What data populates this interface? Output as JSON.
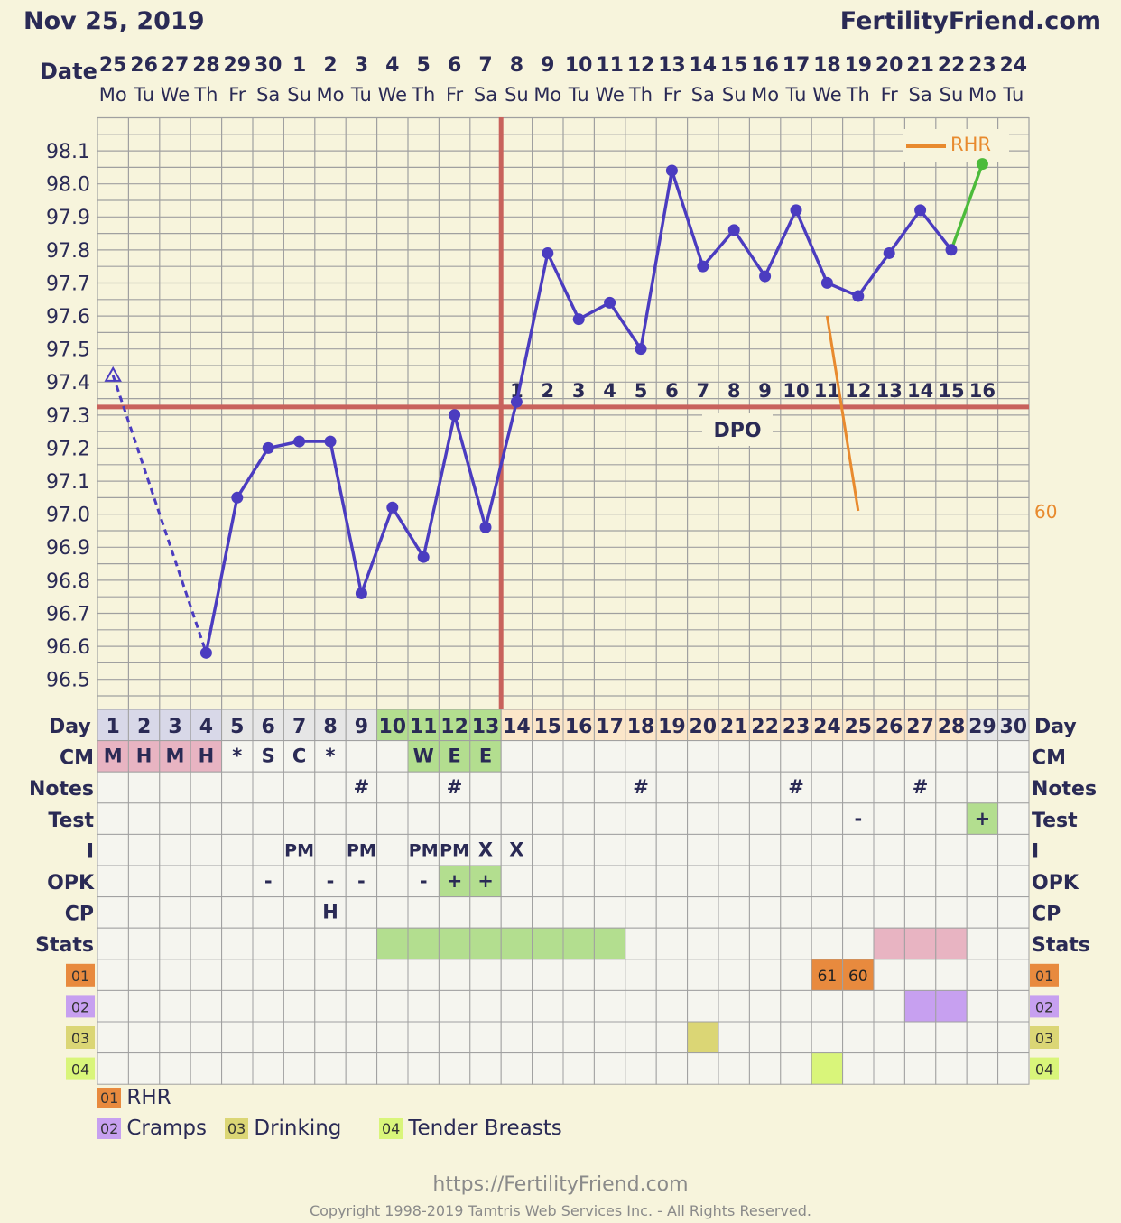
{
  "header": {
    "date": "Nov 25, 2019",
    "site": "FertilityFriend.com"
  },
  "footer": {
    "url": "https://FertilityFriend.com",
    "copyright": "Copyright 1998-2019 Tamtris Web Services Inc. - All Rights Reserved."
  },
  "labels": {
    "date": "Date",
    "day": "Day",
    "dpo": "DPO",
    "rhr_axis": "60"
  },
  "colors": {
    "background": "#f7f4dc",
    "temp_line": "#4b3cc0",
    "coverline": "#c8625c",
    "rhr": "#e88a2e",
    "today": "#4cbb3a",
    "menses": "#e8b4c2",
    "fertile": "#b3de8f",
    "post_ovulation": "#fbe6c9",
    "cat01": "#e88a3e",
    "cat02": "#c7a0f0",
    "cat03": "#dbd675",
    "cat04": "#d9f57a"
  },
  "chart_data": {
    "type": "line",
    "title": "Nov 25, 2019",
    "dates": [
      "25",
      "26",
      "27",
      "28",
      "29",
      "30",
      "1",
      "2",
      "3",
      "4",
      "5",
      "6",
      "7",
      "8",
      "9",
      "10",
      "11",
      "12",
      "13",
      "14",
      "15",
      "16",
      "17",
      "18",
      "19",
      "20",
      "21",
      "22",
      "23",
      "24"
    ],
    "weekdays": [
      "Mo",
      "Tu",
      "We",
      "Th",
      "Fr",
      "Sa",
      "Su",
      "Mo",
      "Tu",
      "We",
      "Th",
      "Fr",
      "Sa",
      "Su",
      "Mo",
      "Tu",
      "We",
      "Th",
      "Fr",
      "Sa",
      "Su",
      "Mo",
      "Tu",
      "We",
      "Th",
      "Fr",
      "Sa",
      "Su",
      "Mo",
      "Tu"
    ],
    "cycle_days": [
      1,
      2,
      3,
      4,
      5,
      6,
      7,
      8,
      9,
      10,
      11,
      12,
      13,
      14,
      15,
      16,
      17,
      18,
      19,
      20,
      21,
      22,
      23,
      24,
      25,
      26,
      27,
      28,
      29,
      30
    ],
    "y_ticks": [
      "98.1",
      "98.0",
      "97.9",
      "97.8",
      "97.7",
      "97.6",
      "97.5",
      "97.4",
      "97.3",
      "97.2",
      "97.1",
      "97.0",
      "96.9",
      "96.8",
      "96.7",
      "96.6",
      "96.5"
    ],
    "ylim": [
      96.4,
      98.2
    ],
    "temperatures": [
      97.42,
      null,
      null,
      96.58,
      97.05,
      97.2,
      97.22,
      97.22,
      96.76,
      97.02,
      96.87,
      97.3,
      96.96,
      97.34,
      97.79,
      97.59,
      97.64,
      97.5,
      98.04,
      97.75,
      97.86,
      97.72,
      97.92,
      97.7,
      97.66,
      97.79,
      97.92,
      97.8,
      98.06,
      null
    ],
    "open_marker_days": [
      1
    ],
    "dashed_segment_days": [
      1,
      4
    ],
    "today_segment_days": [
      28,
      29
    ],
    "coverline": 97.33,
    "ovulation_day": 13,
    "dpo_labels": [
      "1",
      "2",
      "3",
      "4",
      "5",
      "6",
      "7",
      "8",
      "9",
      "10",
      "11",
      "12",
      "13",
      "14",
      "15",
      "16"
    ],
    "dpo_start_day": 14,
    "rhr": {
      "name": "RHR",
      "days": [
        24,
        25
      ],
      "values": [
        61,
        60
      ]
    },
    "menses_days": [
      1,
      2,
      3,
      4
    ],
    "fertile_days": [
      10,
      11,
      12,
      13
    ],
    "post_ov_days": [
      14,
      15,
      16,
      17,
      18,
      19,
      20,
      21,
      22,
      23,
      24,
      25,
      26,
      27,
      28
    ],
    "rows": [
      {
        "label": "CM",
        "cells": {
          "1": "M",
          "2": "H",
          "3": "M",
          "4": "H",
          "5": "*",
          "6": "S",
          "7": "C",
          "8": "*",
          "11": "W",
          "12": "E",
          "13": "E"
        },
        "colored": {
          "1": "menses",
          "2": "menses",
          "3": "menses",
          "4": "menses",
          "11": "fertile",
          "12": "fertile",
          "13": "fertile"
        }
      },
      {
        "label": "Notes",
        "cells": {
          "9": "#",
          "12": "#",
          "18": "#",
          "23": "#",
          "27": "#"
        },
        "colored": {}
      },
      {
        "label": "Test",
        "cells": {
          "25": "-",
          "29": "+"
        },
        "colored": {
          "29": "fertile"
        }
      },
      {
        "label": "I",
        "cells": {
          "7": "PM",
          "9": "PM",
          "11": "PM",
          "12": "PM",
          "13": "X",
          "14": "X"
        },
        "colored": {}
      },
      {
        "label": "OPK",
        "cells": {
          "6": "-",
          "8": "-",
          "9": "-",
          "11": "-",
          "12": "+",
          "13": "+"
        },
        "colored": {
          "12": "fertile",
          "13": "fertile"
        }
      },
      {
        "label": "CP",
        "cells": {
          "8": "H"
        },
        "colored": {}
      },
      {
        "label": "Stats",
        "cells": {},
        "colored": {
          "10": "fertile",
          "11": "fertile",
          "12": "fertile",
          "13": "fertile",
          "14": "fertile",
          "15": "fertile",
          "16": "fertile",
          "17": "fertile",
          "26": "menses",
          "27": "menses",
          "28": "menses"
        }
      },
      {
        "label": "01",
        "cells": {
          "24": "61",
          "25": "60"
        },
        "colored": {
          "24": "cat01",
          "25": "cat01"
        }
      },
      {
        "label": "02",
        "cells": {},
        "colored": {
          "27": "cat02",
          "28": "cat02"
        }
      },
      {
        "label": "03",
        "cells": {},
        "colored": {
          "20": "cat03"
        }
      },
      {
        "label": "04",
        "cells": {},
        "colored": {
          "24": "cat04"
        }
      }
    ],
    "legend": [
      {
        "code": "01",
        "name": "RHR"
      },
      {
        "code": "02",
        "name": "Cramps"
      },
      {
        "code": "03",
        "name": "Drinking"
      },
      {
        "code": "04",
        "name": "Tender Breasts"
      }
    ]
  }
}
